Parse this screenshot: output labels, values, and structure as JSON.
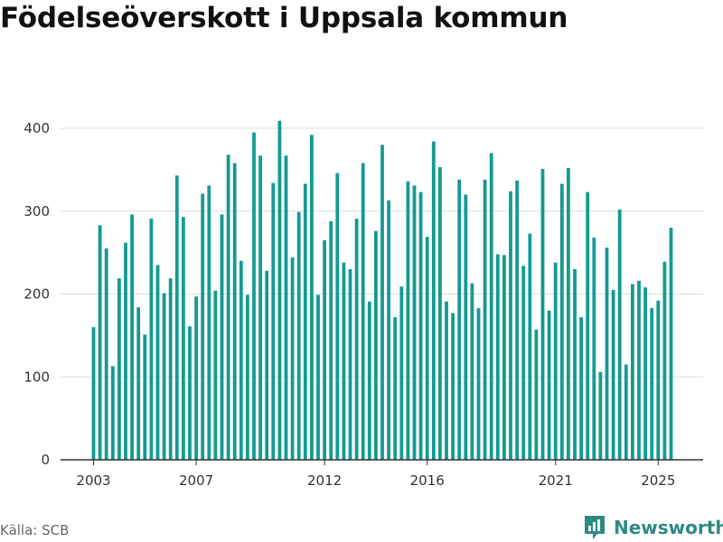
{
  "title": "Födelseöverskott i Uppsala kommun",
  "source": "Källa: SCB",
  "brand": {
    "name": "Newsworthy",
    "icon": "newsworthy-logo-icon",
    "color": "#2d8a83"
  },
  "colors": {
    "bar": "#149a94",
    "grid": "#dddddd",
    "axis": "#333333"
  },
  "chart_data": {
    "type": "bar",
    "title": "Födelseöverskott i Uppsala kommun",
    "xlabel": "",
    "ylabel": "",
    "ylim": [
      0,
      420
    ],
    "yticks": [
      0,
      100,
      200,
      300,
      400
    ],
    "xtick_labels": [
      "2003",
      "2007",
      "2012",
      "2016",
      "2021",
      "2025"
    ],
    "grid": true,
    "frequency": "quarterly",
    "start": "2003 Q1",
    "values": [
      160,
      283,
      255,
      113,
      219,
      262,
      296,
      184,
      151,
      291,
      235,
      201,
      219,
      343,
      293,
      161,
      197,
      321,
      331,
      204,
      296,
      368,
      358,
      240,
      199,
      395,
      367,
      228,
      334,
      409,
      367,
      244,
      299,
      333,
      392,
      199,
      265,
      288,
      346,
      238,
      230,
      291,
      358,
      191,
      276,
      380,
      313,
      172,
      209,
      336,
      331,
      323,
      269,
      384,
      353,
      191,
      177,
      338,
      320,
      213,
      183,
      338,
      370,
      248,
      247,
      324,
      337,
      234,
      273,
      157,
      351,
      180,
      238,
      333,
      352,
      230,
      172,
      323,
      268,
      106,
      256,
      205,
      302,
      115,
      212,
      216,
      208,
      183,
      192,
      239,
      280
    ]
  }
}
